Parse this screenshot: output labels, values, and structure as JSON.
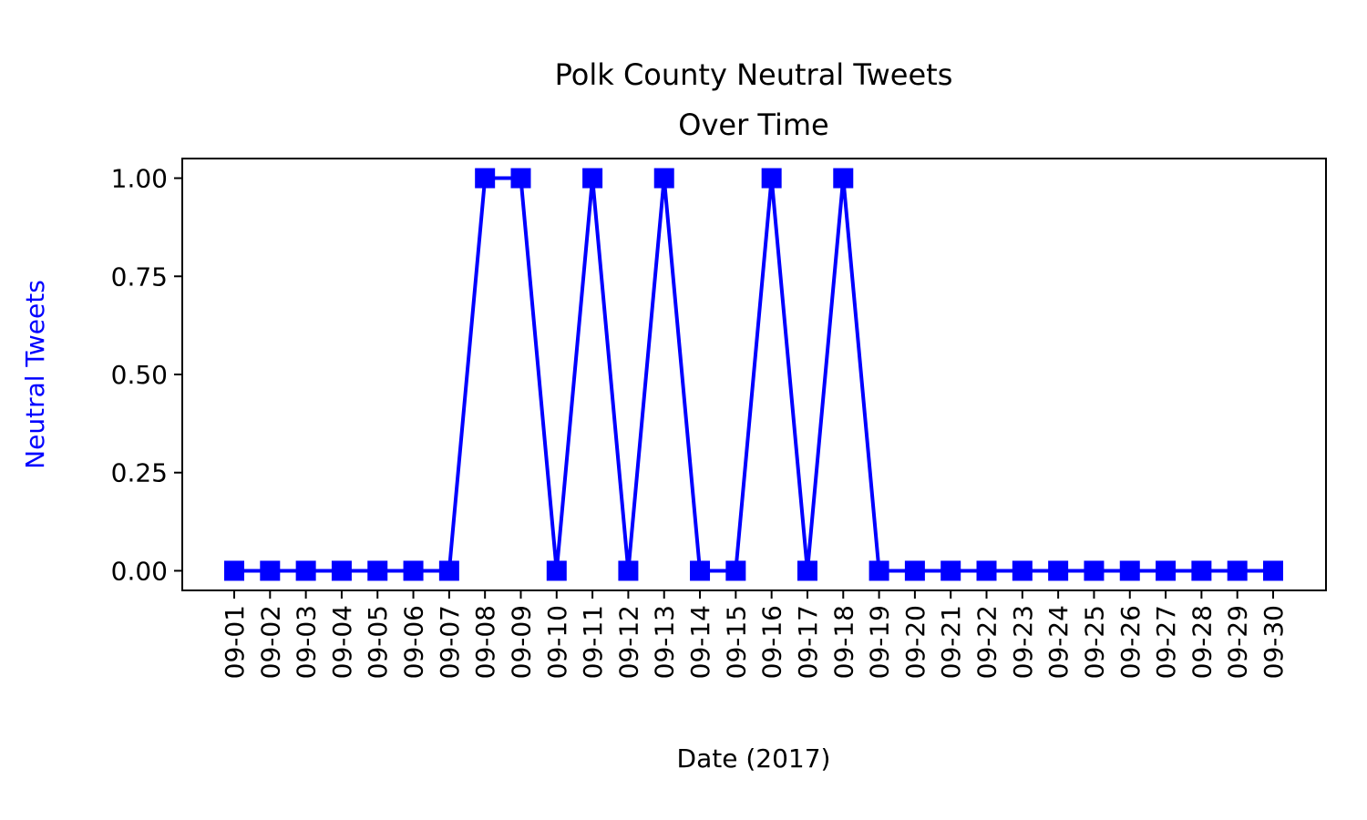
{
  "chart_data": {
    "type": "line",
    "title": "Polk County Neutral Tweets",
    "subtitle": "Over Time",
    "xlabel": "Date (2017)",
    "ylabel": "Neutral Tweets",
    "categories": [
      "09-01",
      "09-02",
      "09-03",
      "09-04",
      "09-05",
      "09-06",
      "09-07",
      "09-08",
      "09-09",
      "09-10",
      "09-11",
      "09-12",
      "09-13",
      "09-14",
      "09-15",
      "09-16",
      "09-17",
      "09-18",
      "09-19",
      "09-20",
      "09-21",
      "09-22",
      "09-23",
      "09-24",
      "09-25",
      "09-26",
      "09-27",
      "09-28",
      "09-29",
      "09-30"
    ],
    "series": [
      {
        "values": [
          0,
          0,
          0,
          0,
          0,
          0,
          0,
          1,
          1,
          0,
          1,
          0,
          1,
          0,
          0,
          1,
          0,
          1,
          0,
          0,
          0,
          0,
          0,
          0,
          0,
          0,
          0,
          0,
          0,
          0
        ],
        "color": "#0000ff",
        "marker": "square"
      }
    ],
    "ylim": [
      -0.05,
      1.05
    ],
    "yticks": [
      "0.00",
      "0.25",
      "0.50",
      "0.75",
      "1.00"
    ],
    "ylabel_color": "#0000ff",
    "grid": false,
    "legend": "none"
  }
}
